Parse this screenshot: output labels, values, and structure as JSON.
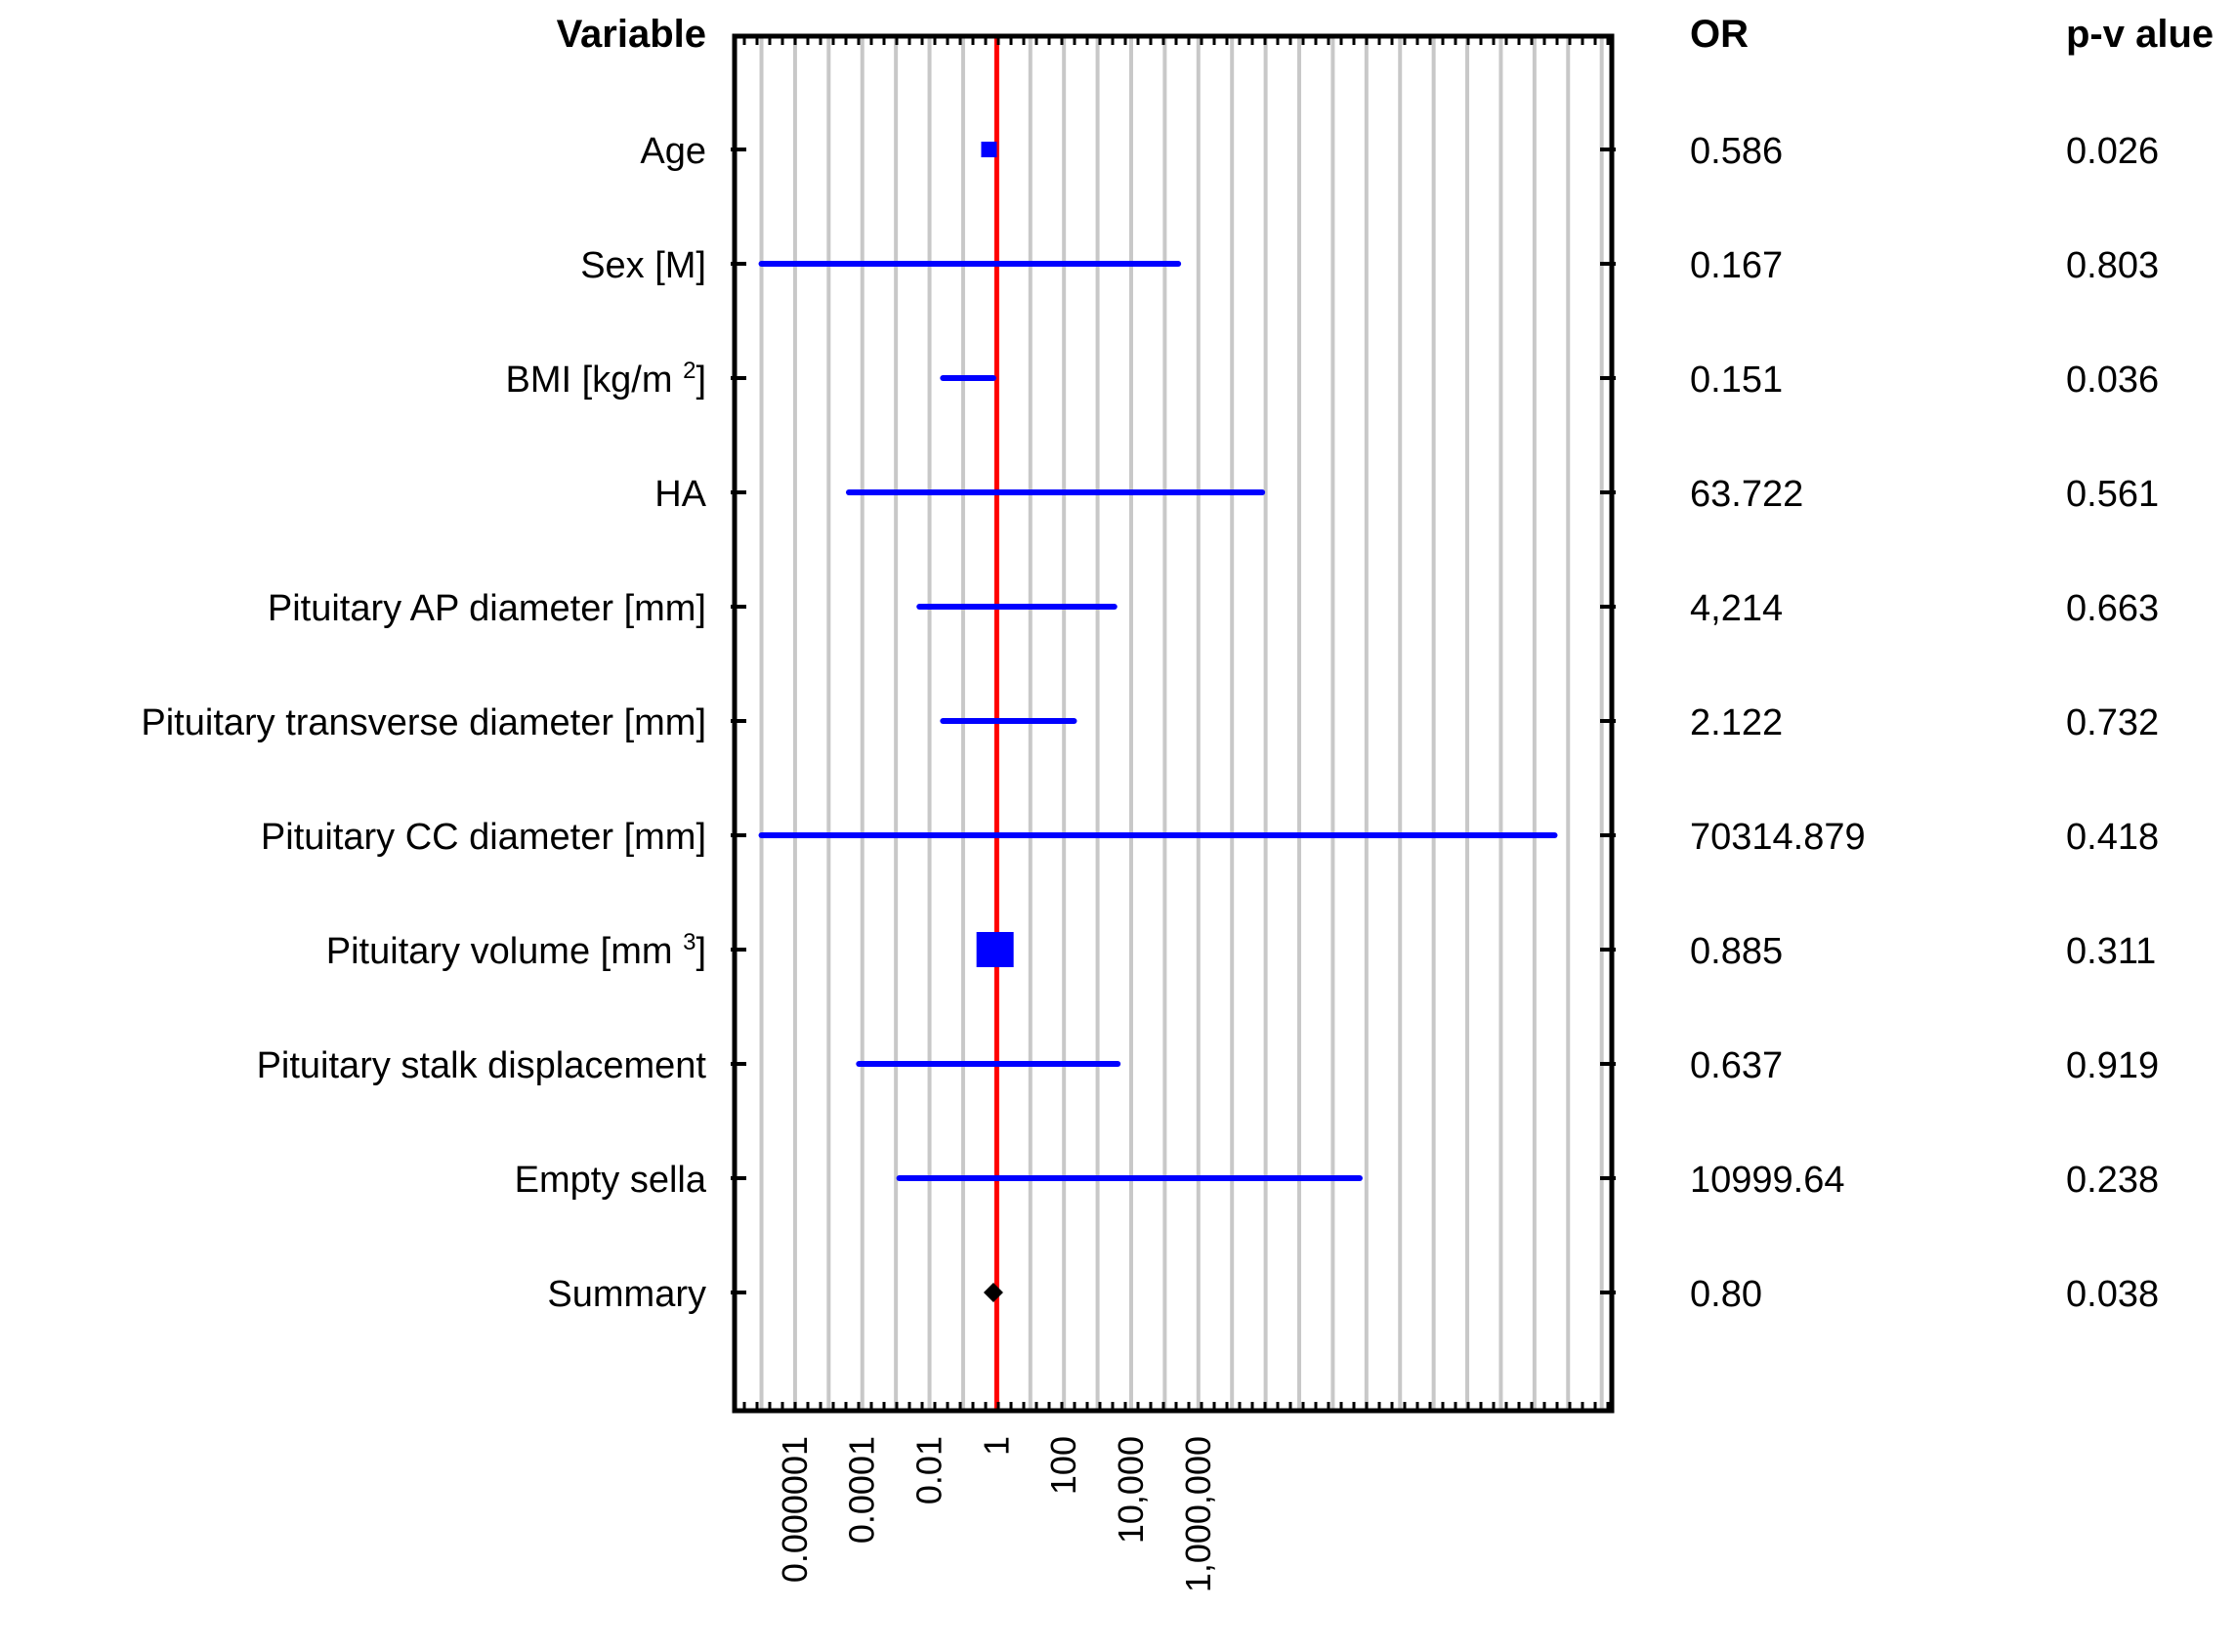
{
  "chart_data": {
    "type": "forest",
    "headers": {
      "variable": "Variable",
      "or": "OR",
      "pvalue": "p-v alue"
    },
    "x_scale": "log10",
    "xlim_log10": [
      -7.8,
      18.3
    ],
    "reference_line_value": 1,
    "x_tick_labels": [
      "0.000001",
      "0.0001",
      "0.01",
      "1",
      "100",
      "10,000",
      "1,000,000"
    ],
    "x_tick_log10": [
      -6,
      -4,
      -2,
      0,
      2,
      4,
      6
    ],
    "rows": [
      {
        "label": "Age",
        "sup": "",
        "label_tail": "",
        "or_text": "0.586",
        "p_text": "0.026",
        "or_log": -0.23,
        "lo_log": null,
        "hi_log": null,
        "marker": "square",
        "marker_size": "small"
      },
      {
        "label": "Sex [M]",
        "sup": "",
        "label_tail": "",
        "or_text": "0.167",
        "p_text": "0.803",
        "or_log": -0.78,
        "lo_log": -7.0,
        "hi_log": 5.4,
        "marker": "none",
        "marker_size": ""
      },
      {
        "label": "BMI [kg/m ",
        "sup": "2",
        "label_tail": "]",
        "or_text": "0.151",
        "p_text": "0.036",
        "or_log": -0.82,
        "lo_log": -1.6,
        "hi_log": -0.1,
        "marker": "none",
        "marker_size": ""
      },
      {
        "label": "HA",
        "sup": "",
        "label_tail": "",
        "or_text": "63.722",
        "p_text": "0.561",
        "or_log": 1.8,
        "lo_log": -4.4,
        "hi_log": 7.9,
        "marker": "none",
        "marker_size": ""
      },
      {
        "label": "Pituitary AP diameter [mm]",
        "sup": "",
        "label_tail": "",
        "or_text": "4,214",
        "p_text": "0.663",
        "or_log": 0.62,
        "lo_log": -2.3,
        "hi_log": 3.5,
        "marker": "none",
        "marker_size": ""
      },
      {
        "label": "Pituitary transverse diameter [mm]",
        "sup": "",
        "label_tail": "",
        "or_text": "2.122",
        "p_text": "0.732",
        "or_log": 0.33,
        "lo_log": -1.6,
        "hi_log": 2.3,
        "marker": "none",
        "marker_size": ""
      },
      {
        "label": "Pituitary CC diameter [mm]",
        "sup": "",
        "label_tail": "",
        "or_text": "70314.879",
        "p_text": "0.418",
        "or_log": 4.85,
        "lo_log": -7.0,
        "hi_log": 16.6,
        "marker": "none",
        "marker_size": ""
      },
      {
        "label": "Pituitary volume [mm ",
        "sup": "3",
        "label_tail": "]",
        "or_text": "0.885",
        "p_text": "0.311",
        "or_log": -0.05,
        "lo_log": null,
        "hi_log": null,
        "marker": "square",
        "marker_size": "large"
      },
      {
        "label": "Pituitary stalk displacement",
        "sup": "",
        "label_tail": "",
        "or_text": "0.637",
        "p_text": "0.919",
        "or_log": -0.2,
        "lo_log": -4.1,
        "hi_log": 3.6,
        "marker": "none",
        "marker_size": ""
      },
      {
        "label": "Empty sella",
        "sup": "",
        "label_tail": "",
        "or_text": "10999.64",
        "p_text": "0.238",
        "or_log": 4.04,
        "lo_log": -2.9,
        "hi_log": 10.8,
        "marker": "none",
        "marker_size": ""
      },
      {
        "label": "Summary",
        "sup": "",
        "label_tail": "",
        "or_text": "0.80",
        "p_text": "0.038",
        "or_log": -0.1,
        "lo_log": null,
        "hi_log": null,
        "marker": "diamond",
        "marker_size": "small"
      }
    ]
  },
  "colors": {
    "ci": "#0000ff",
    "marker": "#0000ff",
    "reference_line": "#ff0000",
    "grid": "#c8c8c8",
    "frame": "#000000",
    "summary_marker": "#000000"
  }
}
